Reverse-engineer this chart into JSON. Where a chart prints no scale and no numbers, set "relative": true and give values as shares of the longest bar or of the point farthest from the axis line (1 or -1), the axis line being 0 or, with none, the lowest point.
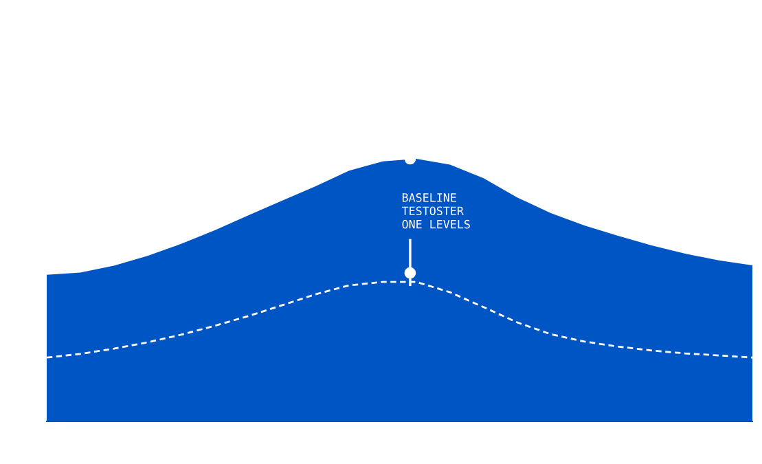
{
  "chart_data": {
    "type": "area",
    "relative": true,
    "categories": [
      null,
      null,
      null,
      null,
      null,
      null,
      null,
      null,
      null,
      null,
      null,
      null,
      null,
      null,
      null,
      null,
      null,
      null,
      null,
      null,
      null,
      null
    ],
    "series": [
      {
        "color": "#0055c4",
        "values": [
          0.558,
          0.567,
          0.593,
          0.63,
          0.676,
          0.728,
          0.785,
          0.84,
          0.895,
          0.955,
          0.99,
          1.0,
          0.978,
          0.926,
          0.853,
          0.793,
          0.746,
          0.707,
          0.67,
          0.639,
          0.613,
          0.594
        ]
      },
      {
        "type": "line",
        "color": "#ffffff",
        "line_style": "dashed",
        "values": [
          0.243,
          0.257,
          0.277,
          0.301,
          0.33,
          0.364,
          0.401,
          0.442,
          0.484,
          0.518,
          0.531,
          0.531,
          0.492,
          0.435,
          0.377,
          0.332,
          0.304,
          0.285,
          0.27,
          0.259,
          0.251,
          0.243
        ]
      }
    ],
    "annotations": [
      "BASELINE\nTESTOSTER\nONE LEVELS"
    ],
    "grid": false,
    "legend": false
  }
}
